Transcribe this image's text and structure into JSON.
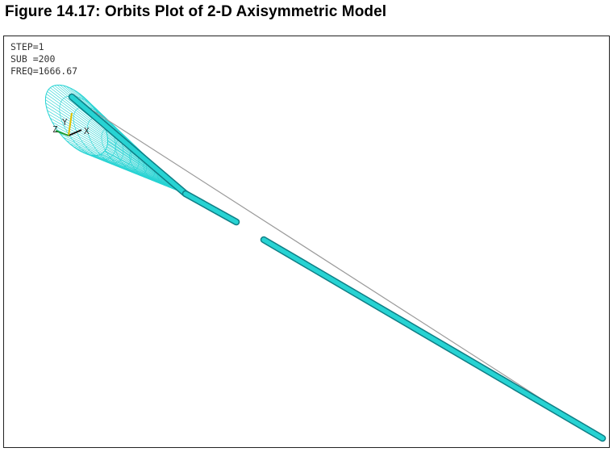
{
  "figure": {
    "title": "Figure 14.17: Orbits Plot of 2-D Axisymmetric Model"
  },
  "plot": {
    "info_lines": [
      "STEP=1",
      "SUB =200",
      "FREQ=1666.67"
    ],
    "triad": {
      "labels": [
        "Z",
        "Y",
        "X"
      ]
    },
    "colors": {
      "mesh": "#27d3d3",
      "mesh_dark": "#0f7f86",
      "shaft_axis": "#9a9a9a",
      "background": "#ffffff",
      "frame": "#222222",
      "triad_x": "#111111",
      "triad_y": "#e0c000",
      "triad_z": "#1d9a2b"
    }
  }
}
